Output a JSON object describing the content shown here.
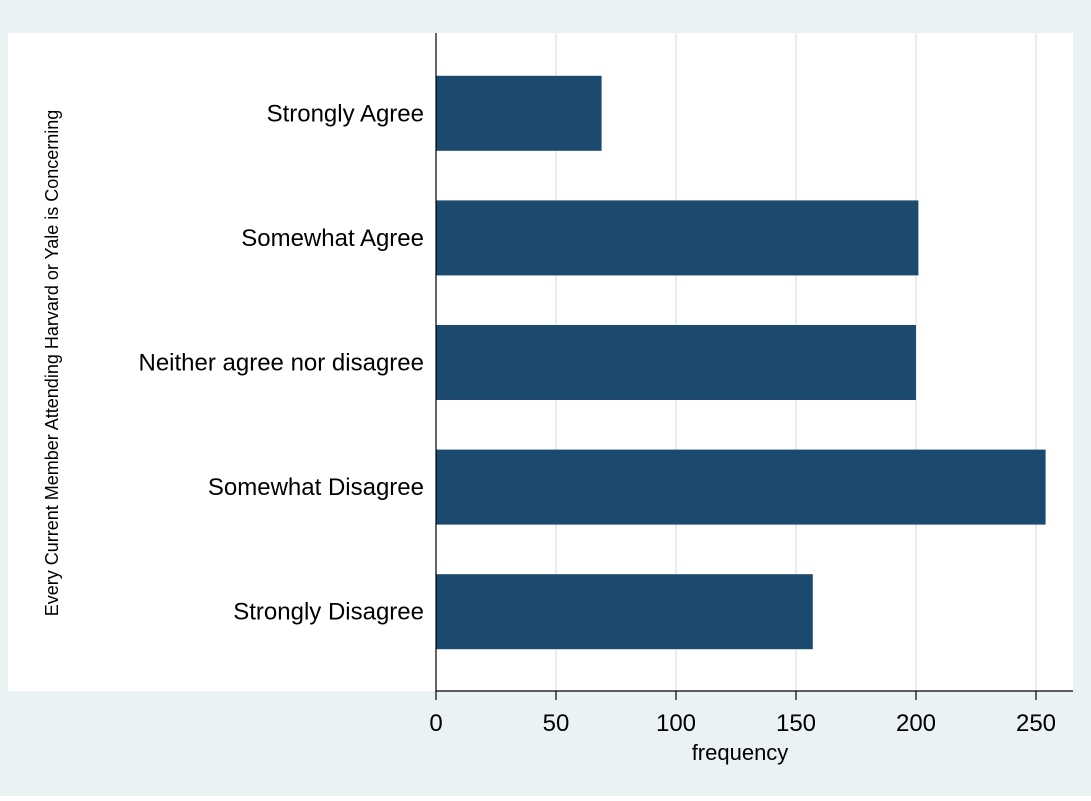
{
  "chart_data": {
    "type": "bar",
    "orientation": "horizontal",
    "title": "",
    "xlabel": "frequency",
    "ylabel": "Every Current Member Attending Harvard or Yale is Concerning",
    "categories": [
      "Strongly Agree",
      "Somewhat Agree",
      "Neither agree nor disagree",
      "Somewhat Disagree",
      "Strongly Disagree"
    ],
    "values": [
      69,
      201,
      200,
      254,
      157
    ],
    "xlim": [
      0,
      265
    ],
    "xticks": [
      0,
      50,
      100,
      150,
      200,
      250
    ],
    "grid": true,
    "legend": "none",
    "colors": {
      "bar": "#1c4a6e",
      "background": "#eaf2f3",
      "plot_background": "#ffffff",
      "grid": "#e6eef0"
    }
  }
}
